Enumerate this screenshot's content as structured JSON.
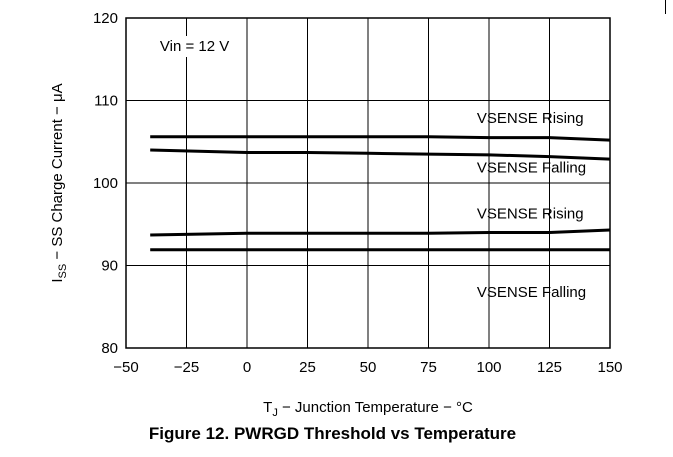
{
  "figure": {
    "caption": "Figure 12. PWRGD Threshold vs Temperature"
  },
  "chart_data": {
    "type": "line",
    "title": "",
    "xlim": [
      -50,
      150
    ],
    "ylim": [
      80,
      120
    ],
    "x_ticks": [
      -50,
      -25,
      0,
      25,
      50,
      75,
      100,
      125,
      150
    ],
    "y_ticks": [
      80,
      90,
      100,
      110,
      120
    ],
    "x_tick_labels": [
      "−50",
      "−25",
      "0",
      "25",
      "50",
      "75",
      "100",
      "125",
      "150"
    ],
    "y_tick_labels": [
      "80",
      "90",
      "100",
      "110",
      "120"
    ],
    "xlabel": {
      "main": "T",
      "sub": "J",
      "rest": " − Junction Temperature − °C"
    },
    "ylabel": {
      "main": "I",
      "sub": "SS",
      "rest": " − SS Charge Current − μA"
    },
    "grid": true,
    "annotations": [
      {
        "text": "Vin = 12 V",
        "x": -36,
        "y": 116
      },
      {
        "text": "VSENSE Rising",
        "x": 95,
        "y": 107.3
      },
      {
        "text": "VSENSE Falling",
        "x": 95,
        "y": 101.3
      },
      {
        "text": "VSENSE Rising",
        "x": 95,
        "y": 95.7
      },
      {
        "text": "VSENSE Falling",
        "x": 95,
        "y": 86.2
      }
    ],
    "series": [
      {
        "x": [
          -40,
          0,
          25,
          50,
          75,
          100,
          125,
          150
        ],
        "values": [
          105.6,
          105.6,
          105.6,
          105.6,
          105.6,
          105.5,
          105.5,
          105.2
        ]
      },
      {
        "x": [
          -40,
          0,
          25,
          50,
          75,
          100,
          125,
          150
        ],
        "values": [
          104.0,
          103.7,
          103.7,
          103.6,
          103.5,
          103.4,
          103.2,
          102.9
        ]
      },
      {
        "x": [
          -40,
          0,
          25,
          50,
          75,
          100,
          125,
          150
        ],
        "values": [
          93.7,
          93.9,
          93.9,
          93.9,
          93.9,
          94.0,
          94.0,
          94.3
        ]
      },
      {
        "x": [
          -40,
          0,
          25,
          50,
          75,
          100,
          125,
          150
        ],
        "values": [
          91.9,
          91.9,
          91.9,
          91.9,
          91.9,
          91.9,
          91.9,
          91.9
        ]
      }
    ]
  }
}
